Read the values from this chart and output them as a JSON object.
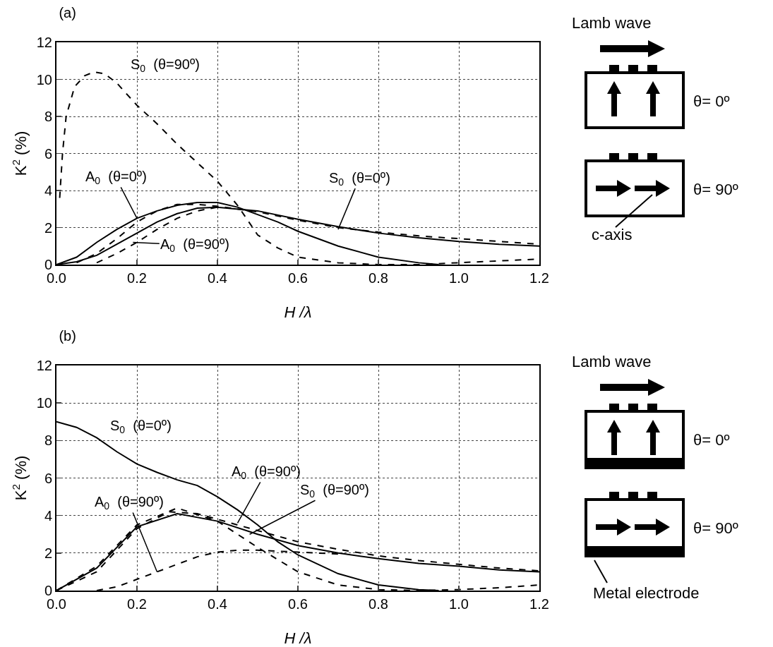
{
  "chart_data": [
    {
      "type": "line",
      "title": "(a)",
      "xlabel": "H /λ",
      "ylabel": "K$^{2}$ (%)",
      "xlim": [
        0,
        1.2
      ],
      "ylim": [
        0,
        12
      ],
      "grid": true,
      "xticks": [
        {
          "value": 0,
          "label": "0.0"
        },
        {
          "value": 0.2,
          "label": "0.2"
        },
        {
          "value": 0.4,
          "label": "0.4"
        },
        {
          "value": 0.6,
          "label": "0.6"
        },
        {
          "value": 0.8,
          "label": "0.8"
        },
        {
          "value": 1,
          "label": "1.0"
        },
        {
          "value": 1.2,
          "label": "1.2"
        }
      ],
      "yticks": [
        0,
        2,
        4,
        6,
        8,
        10,
        12
      ],
      "series": [
        {
          "color": "#000000",
          "line_style": "dashed",
          "x": [
            0.008,
            0.015,
            0.024,
            0.045,
            0.07,
            0.094,
            0.12,
            0.15,
            0.2,
            0.25,
            0.3,
            0.35,
            0.4,
            0.45,
            0.5,
            0.55,
            0.6,
            0.7,
            0.8,
            0.9,
            1.0,
            1.1,
            1.2
          ],
          "values": [
            3.6,
            6,
            8,
            9.6,
            10.2,
            10.4,
            10.3,
            9.8,
            8.6,
            7.6,
            6.5,
            5.5,
            4.5,
            3.2,
            1.6,
            0.9,
            0.4,
            0.1,
            0,
            0,
            0.1,
            0.2,
            0.3
          ]
        },
        {
          "color": "#000000",
          "line_style": "dashed",
          "x": [
            0.05,
            0.1,
            0.15,
            0.2,
            0.25,
            0.3,
            0.35,
            0.4,
            0.5,
            0.6,
            0.7,
            0.8,
            0.9,
            1.0,
            1.1,
            1.2
          ],
          "values": [
            0.1,
            0.6,
            1.4,
            2.3,
            2.9,
            3.25,
            3.25,
            3.15,
            2.85,
            2.4,
            2.0,
            1.75,
            1.55,
            1.4,
            1.25,
            1.1
          ]
        },
        {
          "color": "#000000",
          "line_style": "solid",
          "x": [
            0,
            0.05,
            0.1,
            0.15,
            0.2,
            0.25,
            0.3,
            0.35,
            0.4,
            0.45,
            0.5,
            0.55,
            0.6,
            0.7,
            0.8,
            0.9,
            0.95
          ],
          "values": [
            0,
            0.4,
            1.2,
            1.9,
            2.5,
            2.9,
            3.2,
            3.35,
            3.35,
            3.1,
            2.7,
            2.3,
            1.8,
            1.0,
            0.4,
            0.1,
            0
          ]
        },
        {
          "color": "#000000",
          "line_style": "solid",
          "x": [
            0,
            0.05,
            0.1,
            0.15,
            0.2,
            0.25,
            0.3,
            0.35,
            0.4,
            0.5,
            0.6,
            0.7,
            0.8,
            0.9,
            1.0,
            1.1,
            1.2
          ],
          "values": [
            0,
            0.15,
            0.5,
            1.1,
            1.7,
            2.3,
            2.75,
            3.05,
            3.1,
            2.9,
            2.45,
            2.05,
            1.7,
            1.45,
            1.25,
            1.1,
            1.0
          ]
        },
        {
          "color": "#000000",
          "line_style": "dashed",
          "x": [
            0.1,
            0.15,
            0.2,
            0.25,
            0.3,
            0.35,
            0.4
          ],
          "values": [
            0.1,
            0.6,
            1.2,
            1.9,
            2.5,
            2.9,
            3.1
          ]
        }
      ],
      "annotations": [
        "S$_{0}$  (θ=90º)",
        {
          "text": "A$_{0}$  (θ=0º)",
          "x": 0.2,
          "y": 2.5
        },
        {
          "text": "S$_{0}$  (θ=0º)",
          "x": 0.7,
          "y": 1.9
        },
        {
          "text": "A$_{0}$  (θ=90º)",
          "x": 0.19,
          "y": 1.2
        },
        "Lamb wave",
        "θ= 0º",
        "θ= 90º",
        "c-axis"
      ]
    },
    {
      "type": "line",
      "title": "(b)",
      "xlabel": "H /λ",
      "ylabel": "K$^{2}$ (%)",
      "xlim": [
        0,
        1.2
      ],
      "ylim": [
        0,
        12
      ],
      "grid": true,
      "xticks": [
        {
          "value": 0,
          "label": "0.0"
        },
        {
          "value": 0.2,
          "label": "0.2"
        },
        {
          "value": 0.4,
          "label": "0.4"
        },
        {
          "value": 0.6,
          "label": "0.6"
        },
        {
          "value": 0.8,
          "label": "0.8"
        },
        {
          "value": 1,
          "label": "1.0"
        },
        {
          "value": 1.2,
          "label": "1.2"
        }
      ],
      "yticks": [
        0,
        2,
        4,
        6,
        8,
        10,
        12
      ],
      "series": [
        {
          "color": "#000000",
          "line_style": "solid",
          "x": [
            0,
            0.05,
            0.1,
            0.15,
            0.2,
            0.25,
            0.3,
            0.35,
            0.4,
            0.45,
            0.5,
            0.55,
            0.6,
            0.7,
            0.8,
            0.9,
            0.95
          ],
          "values": [
            9.0,
            8.7,
            8.15,
            7.4,
            6.75,
            6.3,
            5.9,
            5.6,
            5.0,
            4.3,
            3.5,
            2.6,
            1.9,
            0.9,
            0.3,
            0.05,
            0
          ]
        },
        {
          "color": "#000000",
          "line_style": "dashed",
          "x": [
            0,
            0.1,
            0.2,
            0.3,
            0.4,
            0.5,
            0.6,
            0.7,
            0.8,
            0.9,
            1.0,
            1.1,
            1.2
          ],
          "values": [
            0,
            1.3,
            3.5,
            4.4,
            3.7,
            2.3,
            1.0,
            0.3,
            0.05,
            0,
            0.05,
            0.15,
            0.3
          ]
        },
        {
          "color": "#000000",
          "line_style": "dashed",
          "x": [
            0,
            0.1,
            0.2,
            0.28,
            0.35,
            0.4,
            0.5,
            0.6,
            0.7,
            0.8,
            0.9,
            1.0,
            1.1,
            1.2
          ],
          "values": [
            0,
            1.0,
            3.3,
            4.2,
            4.1,
            3.8,
            3.2,
            2.6,
            2.2,
            1.85,
            1.6,
            1.4,
            1.2,
            1.05
          ]
        },
        {
          "color": "#000000",
          "line_style": "solid",
          "x": [
            0,
            0.1,
            0.2,
            0.3,
            0.4,
            0.5,
            0.6,
            0.7,
            0.8,
            0.9,
            1.0,
            1.1,
            1.2
          ],
          "values": [
            0,
            1.2,
            3.4,
            4.1,
            3.7,
            3.0,
            2.4,
            2.0,
            1.7,
            1.45,
            1.3,
            1.1,
            1.0
          ]
        },
        {
          "color": "#000000",
          "line_style": "dashed",
          "x": [
            0.1,
            0.15,
            0.2,
            0.25,
            0.3,
            0.35,
            0.4,
            0.45,
            0.5,
            0.6,
            0.7
          ],
          "values": [
            0,
            0.2,
            0.6,
            1.0,
            1.4,
            1.8,
            2.05,
            2.15,
            2.15,
            2.05,
            1.95
          ]
        }
      ],
      "annotations": [
        {
          "text": "S$_{0}$  (θ=0º)",
          "x": 0.1,
          "y": 8.15
        },
        {
          "text": "A$_{0}$  (θ=90º)",
          "x": 0.45,
          "y": 3.6
        },
        {
          "text": "S$_{0}$  (θ=90º)",
          "x": 0.48,
          "y": 3.0
        },
        {
          "text": "A$_{0}$  (θ=90º)",
          "x": 0.25,
          "y": 1.0
        },
        "Lamb wave",
        "θ= 0º",
        "θ= 90º",
        "Metal electrode"
      ]
    }
  ]
}
